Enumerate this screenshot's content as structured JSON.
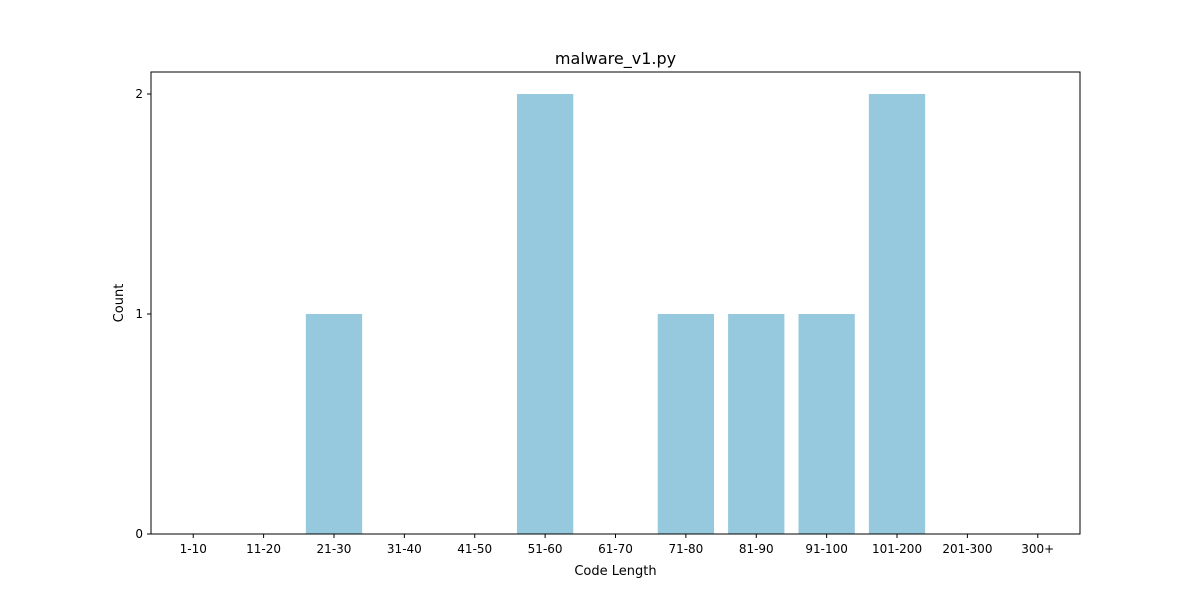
{
  "chart_data": {
    "type": "bar",
    "title": "malware_v1.py",
    "xlabel": "Code Length",
    "ylabel": "Count",
    "categories": [
      "1-10",
      "11-20",
      "21-30",
      "31-40",
      "41-50",
      "51-60",
      "61-70",
      "71-80",
      "81-90",
      "91-100",
      "101-200",
      "201-300",
      "300+"
    ],
    "values": [
      0,
      0,
      1,
      0,
      0,
      2,
      0,
      1,
      1,
      1,
      2,
      0,
      0
    ],
    "ylim": [
      0,
      2.1
    ],
    "yticks": [
      "0",
      "1",
      "2"
    ],
    "bar_color": "#96c9dd",
    "grid": false,
    "legend": "none"
  }
}
